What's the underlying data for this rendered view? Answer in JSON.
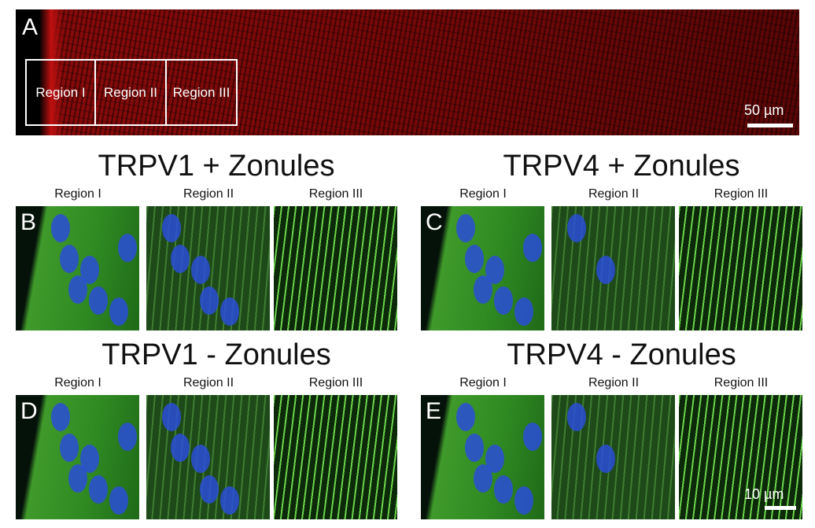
{
  "panel_a": {
    "label": "A",
    "regions": [
      "Region I",
      "Region II",
      "Region III"
    ],
    "scale_bar": "50 µm"
  },
  "groups": [
    {
      "title": "TRPV1 + Zonules",
      "label": "B",
      "regions": [
        "Region I",
        "Region II",
        "Region III"
      ]
    },
    {
      "title": "TRPV4 + Zonules",
      "label": "C",
      "regions": [
        "Region I",
        "Region II",
        "Region III"
      ]
    },
    {
      "title": "TRPV1 - Zonules",
      "label": "D",
      "regions": [
        "Region I",
        "Region II",
        "Region III"
      ]
    },
    {
      "title": "TRPV4 - Zonules",
      "label": "E",
      "regions": [
        "Region I",
        "Region II",
        "Region III"
      ]
    }
  ],
  "scale_bar_bottom": "10 µm"
}
